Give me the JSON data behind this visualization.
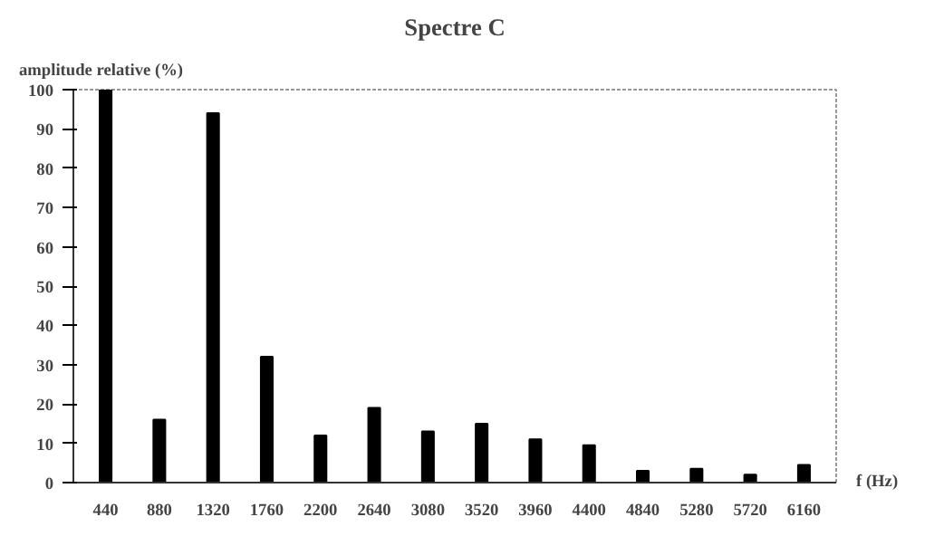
{
  "chart_data": {
    "type": "bar",
    "title": "Spectre C",
    "xlabel": "f (Hz)",
    "ylabel": "amplitude relative (%)",
    "categories": [
      "440",
      "880",
      "1320",
      "1760",
      "2200",
      "2640",
      "3080",
      "3520",
      "3960",
      "4400",
      "4840",
      "5280",
      "5720",
      "6160"
    ],
    "values": [
      100,
      16,
      94,
      32,
      12,
      19,
      13,
      15,
      11,
      9.5,
      3,
      3.5,
      2,
      4.5
    ],
    "color": "#000000",
    "ylim": [
      0,
      100
    ],
    "yticks": [
      0,
      10,
      20,
      30,
      40,
      50,
      60,
      70,
      80,
      90,
      100
    ],
    "grid": false
  }
}
